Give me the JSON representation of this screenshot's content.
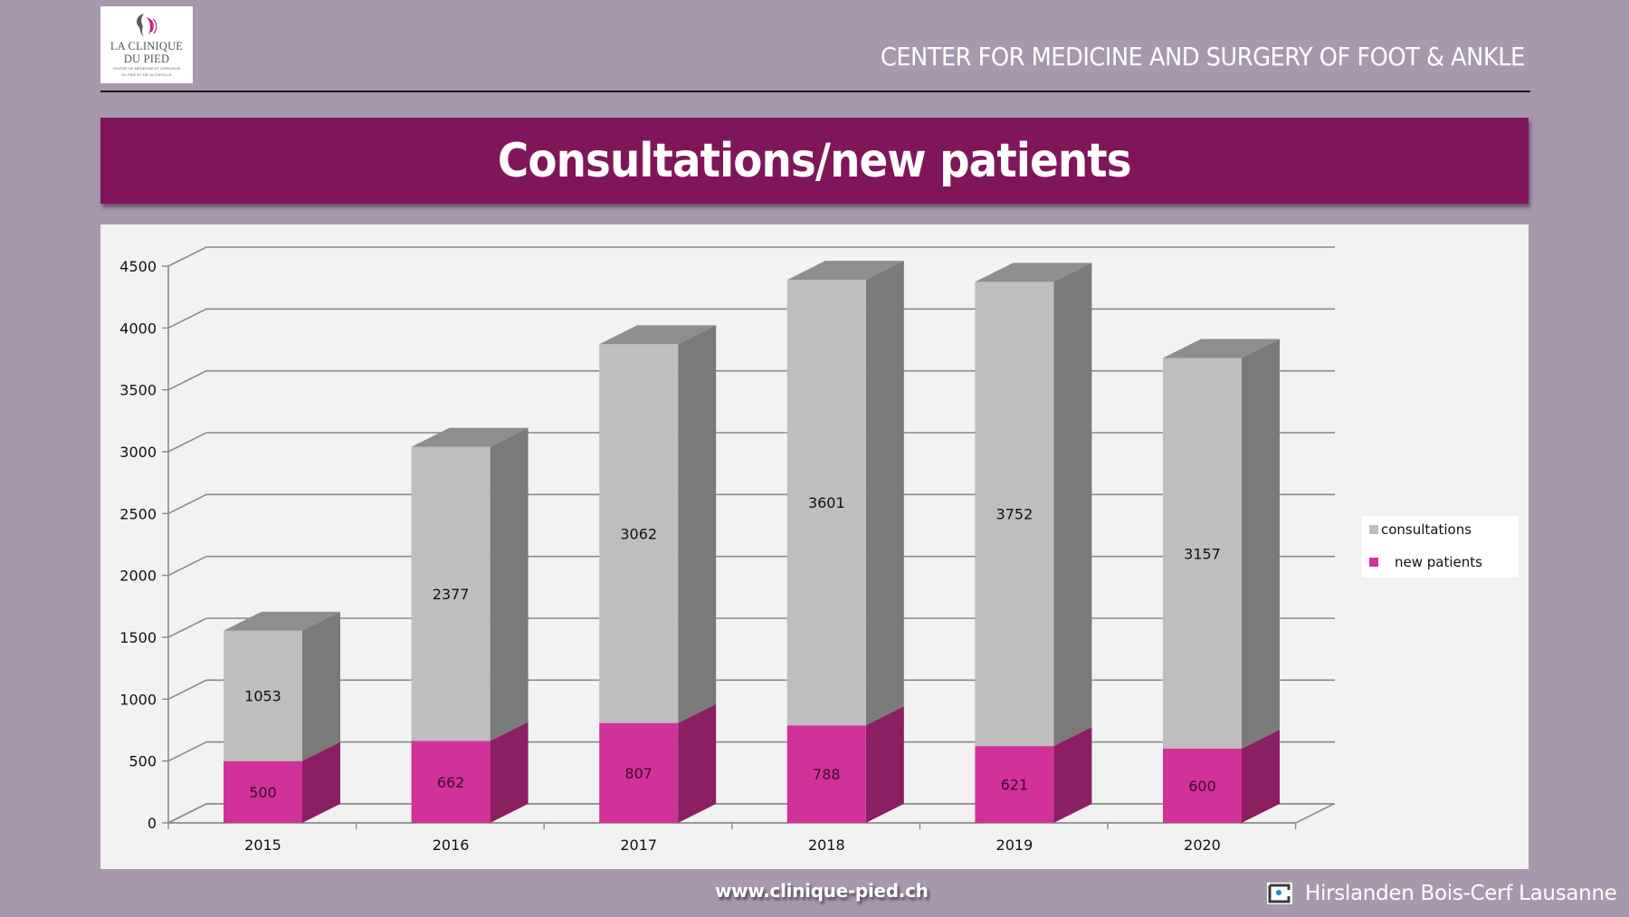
{
  "logo": {
    "line1": "LA CLINIQUE",
    "line2": "DU PIED",
    "subtitle1": "CENTRE DE MÉDECINE ET CHIRURGIE",
    "subtitle2": "DU PIED ET DE LA CHEVILLE"
  },
  "header": {
    "title": "CENTER FOR MEDICINE AND SURGERY OF FOOT & ANKLE"
  },
  "banner": {
    "title": "Consultations/new patients"
  },
  "colors": {
    "background": "#a898ae",
    "banner": "#80165a",
    "consultations_front": "#bebebe",
    "consultations_side": "#7a7a7a",
    "consultations_top": "#8e8e8e",
    "new_patients_front": "#d0329a",
    "new_patients_side": "#8a1f62"
  },
  "chart_data": {
    "type": "bar",
    "stacked": true,
    "three_d": true,
    "title": "Consultations/new patients",
    "xlabel": "",
    "ylabel": "",
    "categories": [
      "2015",
      "2016",
      "2017",
      "2018",
      "2019",
      "2020"
    ],
    "series": [
      {
        "name": "new patients",
        "values": [
          500,
          662,
          807,
          788,
          621,
          600
        ]
      },
      {
        "name": "consultations",
        "values": [
          1053,
          2377,
          3062,
          3601,
          3752,
          3157
        ]
      }
    ],
    "data_labels": true,
    "ylim": [
      0,
      4500
    ],
    "yticks": [
      0,
      500,
      1000,
      1500,
      2000,
      2500,
      3000,
      3500,
      4000,
      4500
    ],
    "grid": true,
    "legend": {
      "position": "right",
      "entries": [
        "consultations",
        "new patients"
      ]
    }
  },
  "footer": {
    "url": "www.clinique-pied.ch",
    "partner": "Hirslanden Bois-Cerf Lausanne"
  }
}
